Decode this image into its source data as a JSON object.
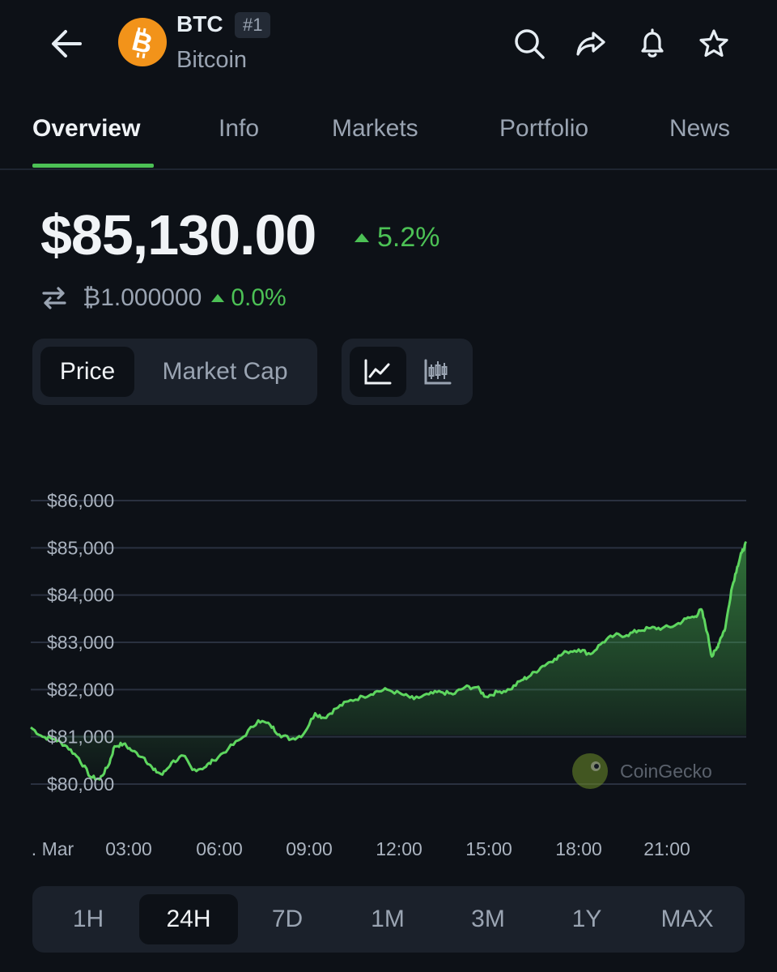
{
  "header": {
    "symbol": "BTC",
    "rank": "#1",
    "name": "Bitcoin",
    "icons": [
      "back-arrow-icon",
      "search-icon",
      "share-icon",
      "bell-icon",
      "star-icon"
    ]
  },
  "tabs": [
    {
      "label": "Overview",
      "active": true
    },
    {
      "label": "Info",
      "active": false
    },
    {
      "label": "Markets",
      "active": false
    },
    {
      "label": "Portfolio",
      "active": false
    },
    {
      "label": "News",
      "active": false
    }
  ],
  "price": {
    "value": "$85,130.00",
    "change": "5.2%",
    "btc_value": "₿1.000000",
    "btc_change": "0.0%"
  },
  "toggles": {
    "metric": [
      {
        "label": "Price",
        "active": true
      },
      {
        "label": "Market Cap",
        "active": false
      }
    ],
    "chart_style": [
      {
        "icon": "line-chart-icon",
        "active": true
      },
      {
        "icon": "candlestick-icon",
        "active": false
      }
    ]
  },
  "watermark": "CoinGecko",
  "ranges": [
    {
      "label": "1H",
      "active": false
    },
    {
      "label": "24H",
      "active": true
    },
    {
      "label": "7D",
      "active": false
    },
    {
      "label": "1M",
      "active": false
    },
    {
      "label": "3M",
      "active": false
    },
    {
      "label": "1Y",
      "active": false
    },
    {
      "label": "MAX",
      "active": false
    }
  ],
  "colors": {
    "accent": "#4cc155",
    "background": "#0d1117",
    "bitcoin": "#f2931a"
  },
  "chart_data": {
    "type": "area",
    "ylim": [
      79900,
      86100
    ],
    "y_ticks": [
      {
        "value": 86000,
        "label": "$86,000"
      },
      {
        "value": 85000,
        "label": "$85,000"
      },
      {
        "value": 84000,
        "label": "$84,000"
      },
      {
        "value": 83000,
        "label": "$83,000"
      },
      {
        "value": 82000,
        "label": "$82,000"
      },
      {
        "value": 81000,
        "label": "$81,000"
      },
      {
        "value": 80000,
        "label": "$80,000"
      }
    ],
    "xlim": [
      -0.1,
      23.8
    ],
    "x_ticks": [
      {
        "value": 0,
        "label": ". Mar"
      },
      {
        "value": 3,
        "label": "03:00"
      },
      {
        "value": 6,
        "label": "06:00"
      },
      {
        "value": 9,
        "label": "09:00"
      },
      {
        "value": 12,
        "label": "12:00"
      },
      {
        "value": 15,
        "label": "15:00"
      },
      {
        "value": 18,
        "label": "18:00"
      },
      {
        "value": 21,
        "label": "21:00"
      }
    ],
    "series": [
      {
        "values": [
          [
            -0.1,
            81200
          ],
          [
            0.3,
            81000
          ],
          [
            0.7,
            80950
          ],
          [
            1.1,
            80800
          ],
          [
            1.5,
            80550
          ],
          [
            1.9,
            80150
          ],
          [
            2.2,
            80100
          ],
          [
            2.5,
            80400
          ],
          [
            2.7,
            80800
          ],
          [
            3.0,
            80850
          ],
          [
            3.3,
            80700
          ],
          [
            3.7,
            80550
          ],
          [
            4.0,
            80300
          ],
          [
            4.3,
            80200
          ],
          [
            4.6,
            80450
          ],
          [
            5.0,
            80600
          ],
          [
            5.3,
            80300
          ],
          [
            5.7,
            80350
          ],
          [
            6.0,
            80500
          ],
          [
            6.5,
            80750
          ],
          [
            7.0,
            81000
          ],
          [
            7.5,
            81350
          ],
          [
            7.9,
            81250
          ],
          [
            8.2,
            81050
          ],
          [
            8.6,
            80950
          ],
          [
            9.0,
            81050
          ],
          [
            9.4,
            81500
          ],
          [
            9.7,
            81400
          ],
          [
            10.1,
            81600
          ],
          [
            10.5,
            81750
          ],
          [
            11.0,
            81850
          ],
          [
            11.4,
            81950
          ],
          [
            11.8,
            82000
          ],
          [
            12.3,
            81900
          ],
          [
            12.7,
            81800
          ],
          [
            13.2,
            81900
          ],
          [
            13.6,
            81950
          ],
          [
            14.0,
            81900
          ],
          [
            14.4,
            82050
          ],
          [
            14.8,
            82050
          ],
          [
            15.1,
            81850
          ],
          [
            15.5,
            81950
          ],
          [
            15.9,
            82000
          ],
          [
            16.3,
            82200
          ],
          [
            16.6,
            82300
          ],
          [
            17.0,
            82500
          ],
          [
            17.4,
            82650
          ],
          [
            17.8,
            82800
          ],
          [
            18.2,
            82850
          ],
          [
            18.6,
            82750
          ],
          [
            19.0,
            83000
          ],
          [
            19.4,
            83150
          ],
          [
            19.8,
            83150
          ],
          [
            20.2,
            83250
          ],
          [
            20.6,
            83300
          ],
          [
            21.0,
            83300
          ],
          [
            21.4,
            83350
          ],
          [
            21.8,
            83500
          ],
          [
            22.1,
            83550
          ],
          [
            22.3,
            83700
          ],
          [
            22.5,
            83200
          ],
          [
            22.65,
            82700
          ],
          [
            22.8,
            82850
          ],
          [
            22.95,
            83100
          ],
          [
            23.1,
            83300
          ],
          [
            23.3,
            84100
          ],
          [
            23.5,
            84600
          ],
          [
            23.65,
            84900
          ],
          [
            23.8,
            85100
          ]
        ]
      }
    ]
  }
}
